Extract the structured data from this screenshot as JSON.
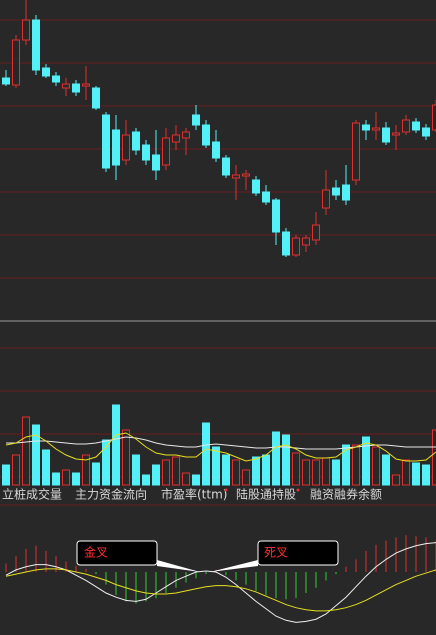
{
  "chart_data": [
    {
      "type": "candlestick",
      "up_color": "#e03030",
      "down_color": "#54f0f8",
      "ylim": [
        0,
        320
      ],
      "open": [
        242,
        235,
        280,
        300,
        252,
        244,
        232,
        236,
        234,
        232,
        205,
        190,
        160,
        188,
        175,
        165,
        155,
        178,
        182,
        205,
        195,
        178,
        162,
        142,
        144,
        140,
        128,
        120,
        88,
        65,
        75,
        80,
        112,
        132,
        135,
        140,
        195,
        190,
        192,
        185,
        188,
        198,
        192,
        190
      ],
      "close": [
        236,
        280,
        300,
        250,
        244,
        238,
        236,
        228,
        236,
        212,
        152,
        155,
        185,
        170,
        160,
        150,
        182,
        185,
        188,
        195,
        175,
        162,
        145,
        145,
        146,
        127,
        118,
        88,
        65,
        82,
        82,
        95,
        130,
        125,
        120,
        197,
        190,
        192,
        178,
        187,
        200,
        190,
        184,
        215
      ],
      "high": [
        250,
        285,
        320,
        305,
        256,
        248,
        242,
        240,
        254,
        234,
        208,
        205,
        200,
        192,
        180,
        190,
        192,
        195,
        192,
        215,
        200,
        190,
        165,
        155,
        150,
        144,
        135,
        122,
        92,
        85,
        85,
        108,
        150,
        140,
        155,
        200,
        200,
        208,
        198,
        195,
        205,
        202,
        196,
        220
      ],
      "low": [
        234,
        232,
        275,
        245,
        242,
        234,
        224,
        224,
        220,
        210,
        148,
        140,
        155,
        165,
        155,
        140,
        150,
        170,
        165,
        190,
        172,
        158,
        142,
        120,
        130,
        124,
        115,
        75,
        63,
        63,
        68,
        75,
        105,
        120,
        115,
        135,
        180,
        180,
        175,
        170,
        185,
        187,
        180,
        188
      ]
    },
    {
      "type": "bar",
      "ylim": [
        0,
        140
      ],
      "up_color": "#e03030",
      "down_color": "#54f0f8",
      "values": [
        20,
        30,
        68,
        60,
        35,
        12,
        15,
        12,
        30,
        22,
        45,
        80,
        55,
        30,
        10,
        20,
        25,
        28,
        12,
        10,
        62,
        38,
        30,
        25,
        15,
        28,
        30,
        53,
        50,
        32,
        25,
        25,
        27,
        25,
        40,
        40,
        48,
        38,
        30,
        10,
        25,
        22,
        20,
        55
      ],
      "lines": [
        {
          "color": "#e8e8e8",
          "values": [
            42,
            42,
            43,
            44,
            44,
            43,
            42,
            41,
            41,
            42,
            44,
            46,
            48,
            47,
            45,
            42,
            40,
            39,
            38,
            38,
            40,
            41,
            40,
            39,
            38,
            37,
            37,
            38,
            38,
            37,
            36,
            36,
            36,
            36,
            37,
            38,
            39,
            40,
            40,
            39,
            38,
            38,
            38,
            38
          ]
        },
        {
          "color": "#e8e020",
          "values": [
            40,
            42,
            48,
            50,
            44,
            36,
            30,
            26,
            25,
            28,
            38,
            50,
            52,
            46,
            38,
            32,
            30,
            30,
            28,
            28,
            36,
            34,
            32,
            28,
            24,
            26,
            30,
            38,
            40,
            36,
            30,
            27,
            27,
            28,
            35,
            38,
            42,
            40,
            34,
            26,
            24,
            24,
            25,
            33
          ]
        }
      ],
      "tabs": [
        "立桩成交量",
        "主力资金流向",
        "市盈率(ttm)",
        "陆股通持股",
        "融资融券余额"
      ]
    },
    {
      "type": "macd",
      "ylim": [
        -60,
        60
      ],
      "up_color": "#e03030",
      "down_color": "#30d030",
      "values": [
        8,
        15,
        22,
        25,
        20,
        15,
        10,
        6,
        3,
        -2,
        -12,
        -22,
        -28,
        -30,
        -28,
        -25,
        -20,
        -15,
        -10,
        -6,
        -2,
        2,
        -3,
        -8,
        -12,
        -18,
        -22,
        -25,
        -26,
        -25,
        -20,
        -15,
        -8,
        -2,
        5,
        12,
        20,
        26,
        30,
        33,
        35,
        34,
        33,
        30
      ],
      "lines": [
        {
          "color": "#f0f0f0",
          "values": [
            -3,
            2,
            5,
            7,
            7,
            5,
            2,
            -3,
            -8,
            -14,
            -20,
            -24,
            -27,
            -28,
            -26,
            -20,
            -14,
            -8,
            -4,
            0,
            1,
            0,
            -5,
            -12,
            -20,
            -28,
            -35,
            -42,
            -46,
            -48,
            -47,
            -45,
            -40,
            -32,
            -24,
            -14,
            -4,
            5,
            12,
            18,
            22,
            25,
            27,
            28
          ]
        },
        {
          "color": "#e8e020",
          "values": [
            -4,
            -2,
            0,
            2,
            3,
            3,
            2,
            0,
            -2,
            -5,
            -8,
            -12,
            -15,
            -18,
            -20,
            -21,
            -21,
            -20,
            -18,
            -16,
            -14,
            -13,
            -13,
            -14,
            -16,
            -19,
            -23,
            -27,
            -31,
            -34,
            -36,
            -37,
            -37,
            -36,
            -34,
            -31,
            -27,
            -22,
            -17,
            -12,
            -8,
            -4,
            -1,
            2
          ]
        }
      ],
      "annotations": [
        "金叉",
        "死叉"
      ]
    }
  ]
}
